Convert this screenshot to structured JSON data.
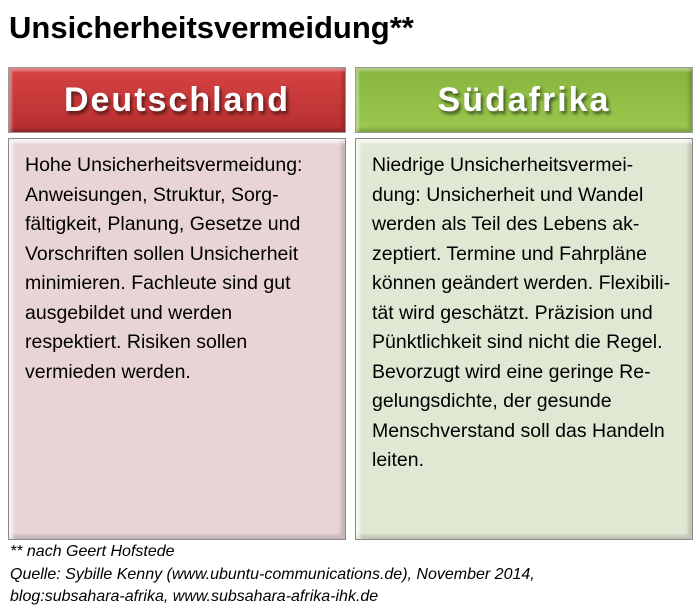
{
  "title": "Unsicherheitsvermeidung**",
  "columns": [
    {
      "heading": "Deutschland",
      "color": "#c83a3a",
      "lines": [
        "Hohe Unsicherheitsvermeidung:",
        "Anweisungen, Struktur, Sorg-",
        "fältigkeit, Planung, Gesetze und",
        "Vorschriften sollen Unsicherheit",
        "minimieren. Fachleute sind gut",
        "ausgebildet und werden",
        "respektiert. Risiken sollen",
        "vermieden werden."
      ]
    },
    {
      "heading": "Südafrika",
      "color": "#8fbd45",
      "lines": [
        "Niedrige Unsicherheitsvermei-",
        "dung: Unsicherheit und Wandel",
        "werden als Teil des Lebens ak-",
        "zeptiert. Termine und Fahrpläne",
        "können geändert werden. Flexibili-",
        "tät wird geschätzt. Präzision und",
        "Pünktlichkeit sind nicht die Regel.",
        "Bevorzugt wird eine geringe Re-",
        "gelungsdichte, der gesunde",
        "Menschverstand soll das Handeln",
        "leiten."
      ]
    }
  ],
  "footer": [
    "** nach Geert Hofstede",
    "Quelle: Sybille Kenny (www.ubuntu-communications.de), November 2014,",
    "blog:subsahara-afrika, www.subsahara-afrika-ihk.de"
  ]
}
